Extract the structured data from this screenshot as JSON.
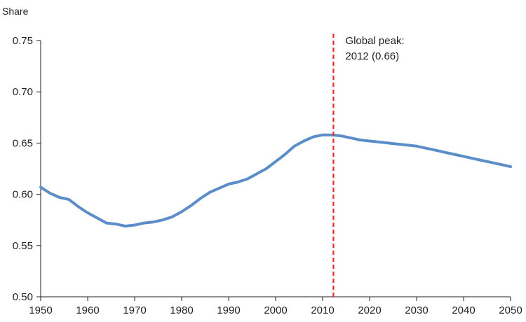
{
  "chart_data": {
    "type": "line",
    "title": "",
    "xlabel": "",
    "ylabel": "Share",
    "xlim": [
      1950,
      2050
    ],
    "ylim": [
      0.5,
      0.75
    ],
    "x_ticks": [
      "1950",
      "1960",
      "1970",
      "1980",
      "1990",
      "2000",
      "2010",
      "2020",
      "2030",
      "2040",
      "2050"
    ],
    "y_ticks": [
      "0.50",
      "0.55",
      "0.60",
      "0.65",
      "0.70",
      "0.75"
    ],
    "grid": false,
    "series": [
      {
        "color": "#5b8ec9",
        "x": [
          1950,
          1952,
          1954,
          1956,
          1958,
          1960,
          1962,
          1964,
          1966,
          1968,
          1970,
          1972,
          1974,
          1976,
          1978,
          1980,
          1982,
          1984,
          1986,
          1988,
          1990,
          1992,
          1994,
          1996,
          1998,
          2000,
          2002,
          2004,
          2006,
          2008,
          2010,
          2012,
          2014,
          2016,
          2018,
          2020,
          2022,
          2024,
          2026,
          2028,
          2030,
          2032,
          2034,
          2036,
          2038,
          2040,
          2042,
          2044,
          2046,
          2048,
          2050
        ],
        "y": [
          0.607,
          0.601,
          0.597,
          0.595,
          0.588,
          0.582,
          0.577,
          0.572,
          0.571,
          0.569,
          0.57,
          0.572,
          0.573,
          0.575,
          0.578,
          0.583,
          0.589,
          0.596,
          0.602,
          0.606,
          0.61,
          0.612,
          0.615,
          0.62,
          0.625,
          0.632,
          0.639,
          0.647,
          0.652,
          0.656,
          0.658,
          0.658,
          0.657,
          0.655,
          0.653,
          0.652,
          0.651,
          0.65,
          0.649,
          0.648,
          0.647,
          0.645,
          0.643,
          0.641,
          0.639,
          0.637,
          0.635,
          0.633,
          0.631,
          0.629,
          0.627
        ]
      }
    ],
    "annotations": [
      {
        "type": "vline",
        "x": 2012.3,
        "color": "#e8292b",
        "lines": [
          "Global peak:",
          "2012 (0.66)"
        ]
      }
    ]
  }
}
